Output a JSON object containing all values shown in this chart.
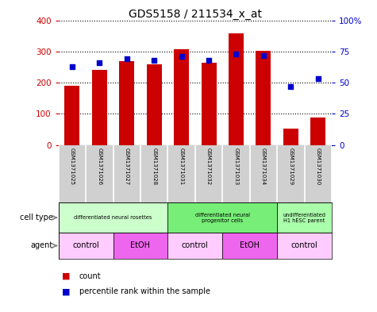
{
  "title": "GDS5158 / 211534_x_at",
  "samples": [
    "GSM1371025",
    "GSM1371026",
    "GSM1371027",
    "GSM1371028",
    "GSM1371031",
    "GSM1371032",
    "GSM1371033",
    "GSM1371034",
    "GSM1371029",
    "GSM1371030"
  ],
  "counts": [
    190,
    240,
    270,
    258,
    308,
    265,
    358,
    302,
    52,
    88
  ],
  "percentiles": [
    63,
    66,
    69,
    68,
    71,
    68,
    73,
    72,
    47,
    53
  ],
  "ylim_left": [
    0,
    400
  ],
  "ylim_right": [
    0,
    100
  ],
  "yticks_left": [
    0,
    100,
    200,
    300,
    400
  ],
  "yticks_right": [
    0,
    25,
    50,
    75,
    100
  ],
  "bar_color": "#cc0000",
  "dot_color": "#0000cc",
  "cell_type_groups": [
    {
      "label": "differentiated neural rosettes",
      "start": 0,
      "end": 4,
      "color": "#ccffcc"
    },
    {
      "label": "differentiated neural\nprogenitor cells",
      "start": 4,
      "end": 8,
      "color": "#77ee77"
    },
    {
      "label": "undifferentiated\nH1 hESC parent",
      "start": 8,
      "end": 10,
      "color": "#aaffaa"
    }
  ],
  "agent_groups": [
    {
      "label": "control",
      "start": 0,
      "end": 2,
      "color": "#ffccff"
    },
    {
      "label": "EtOH",
      "start": 2,
      "end": 4,
      "color": "#ee66ee"
    },
    {
      "label": "control",
      "start": 4,
      "end": 6,
      "color": "#ffccff"
    },
    {
      "label": "EtOH",
      "start": 6,
      "end": 8,
      "color": "#ee66ee"
    },
    {
      "label": "control",
      "start": 8,
      "end": 10,
      "color": "#ffccff"
    }
  ],
  "legend_count_color": "#cc0000",
  "legend_dot_color": "#0000cc",
  "title_fontsize": 10
}
